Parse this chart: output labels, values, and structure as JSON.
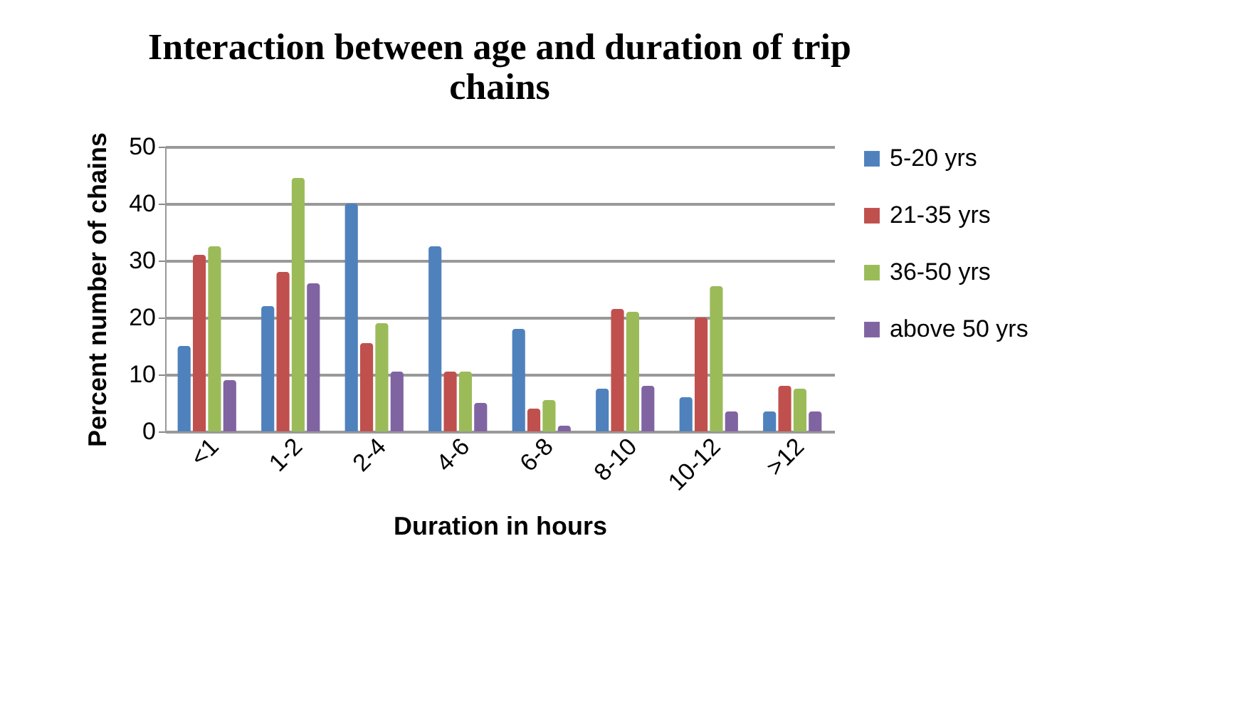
{
  "chart_data": {
    "type": "bar",
    "title": "Interaction between age and duration of trip chains",
    "xlabel": "Duration in hours",
    "ylabel": "Percent number of chains",
    "categories": [
      "<1",
      "1-2",
      "2-4",
      "4-6",
      "6-8",
      "8-10",
      "10-12",
      ">12"
    ],
    "series": [
      {
        "name": "5-20 yrs",
        "color": "#4f81bd",
        "values": [
          15,
          22,
          40,
          32.5,
          18,
          7.5,
          6,
          3.5
        ]
      },
      {
        "name": "21-35 yrs",
        "color": "#c0504d",
        "values": [
          31,
          28,
          15.5,
          10.5,
          4,
          21.5,
          20,
          8
        ]
      },
      {
        "name": "36-50 yrs",
        "color": "#9bbb59",
        "values": [
          32.5,
          44.5,
          19,
          10.5,
          5.5,
          21,
          25.5,
          7.5
        ]
      },
      {
        "name": "above 50 yrs",
        "color": "#8064a2",
        "values": [
          9,
          26,
          10.5,
          5,
          1,
          8,
          3.5,
          3.5
        ]
      }
    ],
    "ylim": [
      0,
      50
    ],
    "yticks": [
      0,
      10,
      20,
      30,
      40,
      50
    ],
    "grid": "y",
    "legend": "right"
  }
}
